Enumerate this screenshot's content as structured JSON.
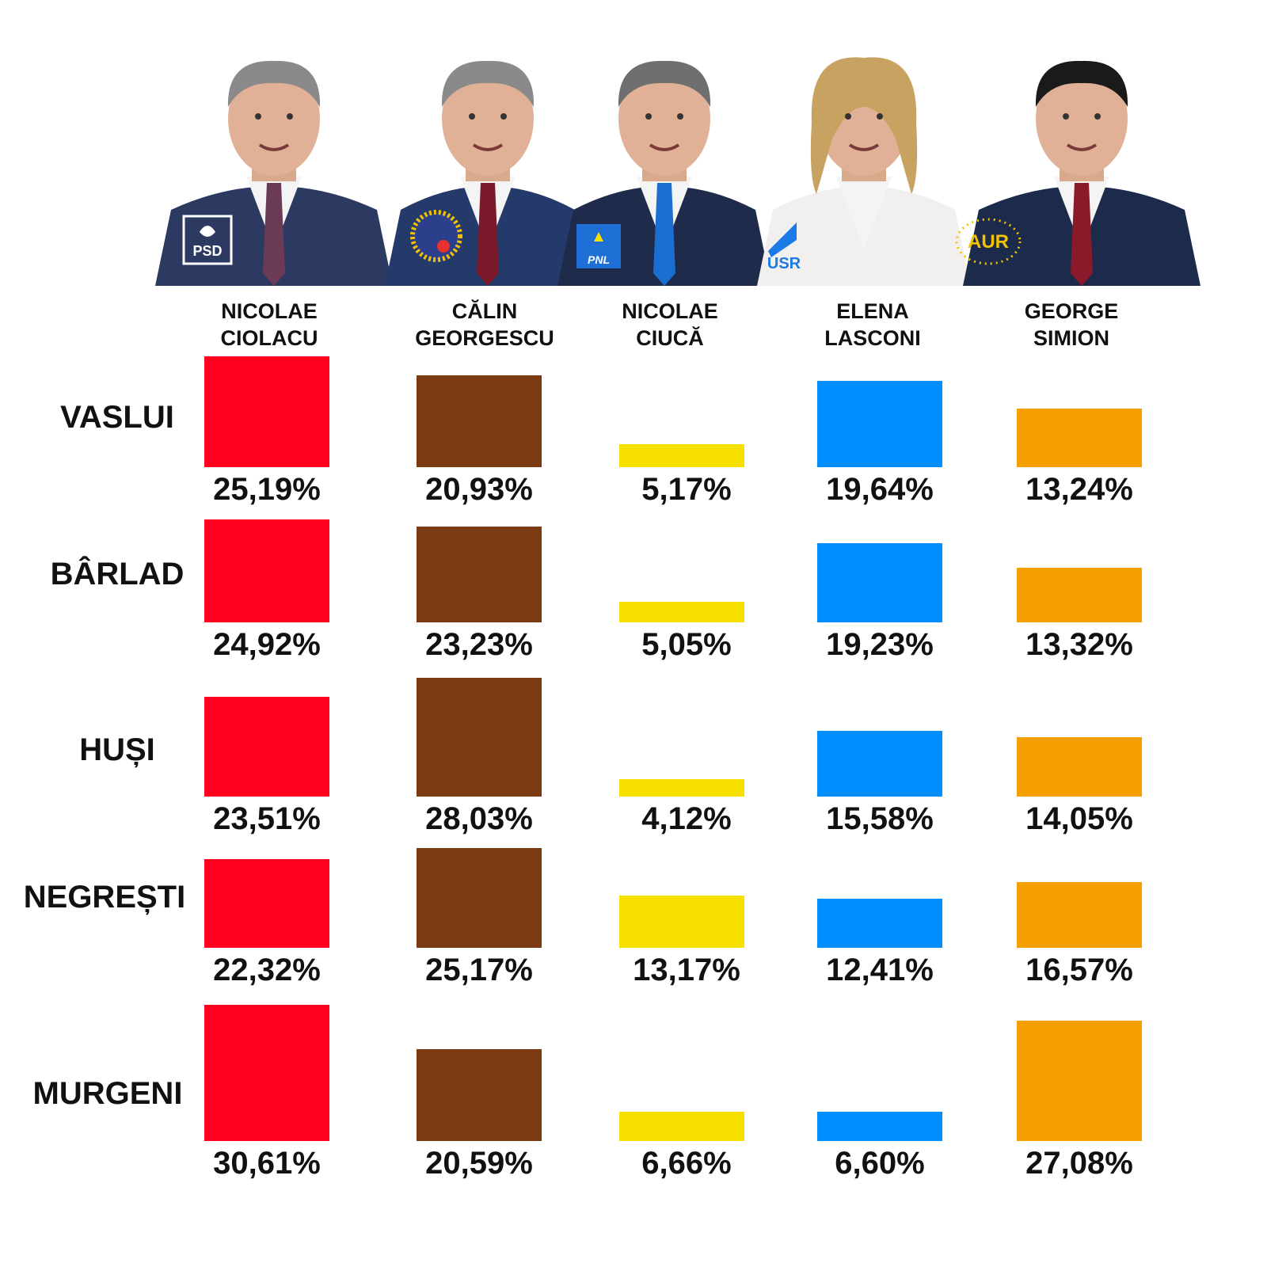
{
  "candidates": [
    {
      "name_line1": "NICOLAE",
      "name_line2": "CIOLACU",
      "party": "PSD",
      "color": "#ff001e",
      "suit": "#2c3a62",
      "tie": "#6b3a55"
    },
    {
      "name_line1": "CĂLIN",
      "name_line2": "GEORGESCU",
      "party": "",
      "color": "#7b3a12",
      "suit": "#243a6a",
      "tie": "#7a1a2a"
    },
    {
      "name_line1": "NICOLAE",
      "name_line2": "CIUCĂ",
      "party": "PNL",
      "color": "#f7e000",
      "suit": "#1f2b4a",
      "tie": "#1a6fd0"
    },
    {
      "name_line1": "ELENA",
      "name_line2": "LASCONI",
      "party": "USR",
      "color": "#008eff",
      "suit": "#f2f0ee",
      "tie": "#f2f0ee"
    },
    {
      "name_line1": "GEORGE",
      "name_line2": "SIMION",
      "party": "AUR",
      "color": "#f5a000",
      "suit": "#1c2a4c",
      "tie": "#8a1a2a"
    }
  ],
  "chart_data": {
    "type": "bar",
    "title": "",
    "categories": [
      "VASLUI",
      "BÂRLAD",
      "HUȘI",
      "NEGREȘTI",
      "MURGENI"
    ],
    "series": [
      {
        "name": "NICOLAE CIOLACU",
        "values": [
          25.19,
          24.92,
          23.51,
          22.32,
          30.61
        ],
        "labels": [
          "25,19%",
          "24,92%",
          "23,51%",
          "22,32%",
          "30,61%"
        ]
      },
      {
        "name": "CĂLIN GEORGESCU",
        "values": [
          20.93,
          23.23,
          28.03,
          25.17,
          20.59
        ],
        "labels": [
          "20,93%",
          "23,23%",
          "28,03%",
          "25,17%",
          "20,59%"
        ]
      },
      {
        "name": "NICOLAE CIUCĂ",
        "values": [
          5.17,
          5.05,
          4.12,
          13.17,
          6.66
        ],
        "labels": [
          "5,17%",
          "5,05%",
          "4,12%",
          "13,17%",
          "6,66%"
        ]
      },
      {
        "name": "ELENA LASCONI",
        "values": [
          19.64,
          19.23,
          15.58,
          12.41,
          6.6
        ],
        "labels": [
          "19,64%",
          "19,23%",
          "15,58%",
          "12,41%",
          "6,60%"
        ]
      },
      {
        "name": "GEORGE SIMION",
        "values": [
          13.24,
          13.32,
          14.05,
          16.57,
          27.08
        ],
        "labels": [
          "13,24%",
          "13,32%",
          "14,05%",
          "16,57%",
          "27,08%"
        ]
      }
    ],
    "colors": [
      "#ff001e",
      "#7b3a12",
      "#f7e000",
      "#008eff",
      "#f5a000"
    ],
    "ylim": [
      0,
      31
    ]
  }
}
